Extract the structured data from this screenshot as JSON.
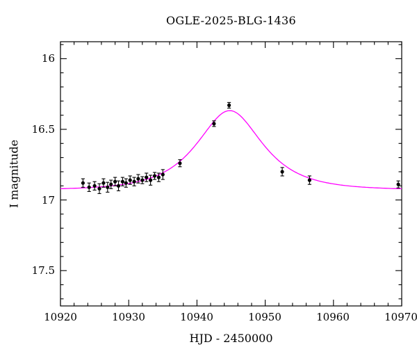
{
  "window": {
    "background": "#ffffff"
  },
  "chart_data": {
    "type": "scatter",
    "title": "OGLE-2025-BLG-1436",
    "xlabel": "HJD - 2450000",
    "ylabel": "I magnitude",
    "xlim": [
      10920,
      10970
    ],
    "ylim": [
      17.75,
      15.88
    ],
    "y_axis_inverted": true,
    "grid": false,
    "legend": "none",
    "x_ticks": [
      10920,
      10930,
      10940,
      10950,
      10960,
      10970
    ],
    "x_tick_labels": [
      "10920",
      "10930",
      "10940",
      "10950",
      "10960",
      "10970"
    ],
    "x_minor_step": 2,
    "y_ticks": [
      16,
      16.5,
      17,
      17.5
    ],
    "y_tick_labels": [
      "16",
      "16.5",
      "17",
      "17.5"
    ],
    "y_minor_step": 0.1,
    "point_color": "#000000",
    "curve_color": "#ff00ff",
    "data_points": [
      [
        10923.3,
        16.88,
        0.03
      ],
      [
        10924.2,
        16.91,
        0.03
      ],
      [
        10925.0,
        16.9,
        0.03
      ],
      [
        10925.7,
        16.92,
        0.035
      ],
      [
        10926.3,
        16.88,
        0.03
      ],
      [
        10926.9,
        16.91,
        0.035
      ],
      [
        10927.4,
        16.89,
        0.03
      ],
      [
        10928.0,
        16.87,
        0.03
      ],
      [
        10928.5,
        16.9,
        0.035
      ],
      [
        10929.1,
        16.87,
        0.03
      ],
      [
        10929.6,
        16.88,
        0.03
      ],
      [
        10930.2,
        16.86,
        0.03
      ],
      [
        10930.8,
        16.87,
        0.03
      ],
      [
        10931.4,
        16.85,
        0.03
      ],
      [
        10932.0,
        16.86,
        0.025
      ],
      [
        10932.6,
        16.84,
        0.03
      ],
      [
        10933.2,
        16.86,
        0.035
      ],
      [
        10933.8,
        16.83,
        0.025
      ],
      [
        10934.4,
        16.84,
        0.03
      ],
      [
        10935.0,
        16.82,
        0.035
      ],
      [
        10937.5,
        16.74,
        0.025
      ],
      [
        10942.5,
        16.46,
        0.02
      ],
      [
        10944.7,
        16.33,
        0.02
      ],
      [
        10952.5,
        16.8,
        0.03
      ],
      [
        10956.5,
        16.86,
        0.03
      ],
      [
        10969.5,
        16.89,
        0.025
      ]
    ],
    "model_curve": {
      "model": "paczynski",
      "t0": 10944.8,
      "tE": 7.0,
      "u0": 0.7,
      "baseline_mag": 16.93,
      "peak_mag": 16.37
    }
  }
}
